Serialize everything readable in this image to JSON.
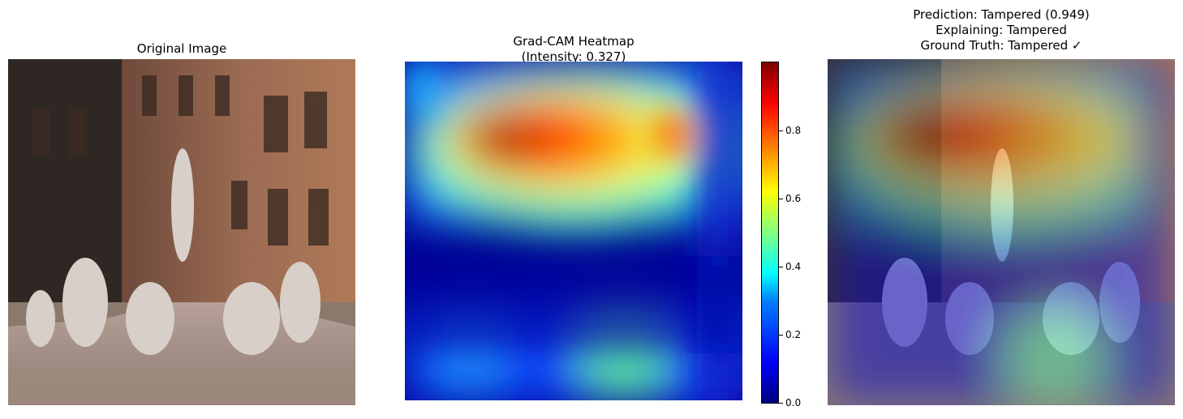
{
  "panels": {
    "original": {
      "title": "Original Image"
    },
    "heatmap": {
      "title": "Grad-CAM Heatmap\n(Intensity: 0.327)"
    },
    "overlay": {
      "title": "Prediction: Tampered (0.949)\nExplaining: Tampered\nGround Truth: Tampered ✓"
    }
  },
  "colorbar": {
    "colormap": "jet",
    "range": [
      0.0,
      1.0
    ],
    "ticks": [
      "0.0",
      "0.2",
      "0.4",
      "0.6",
      "0.8"
    ]
  }
}
